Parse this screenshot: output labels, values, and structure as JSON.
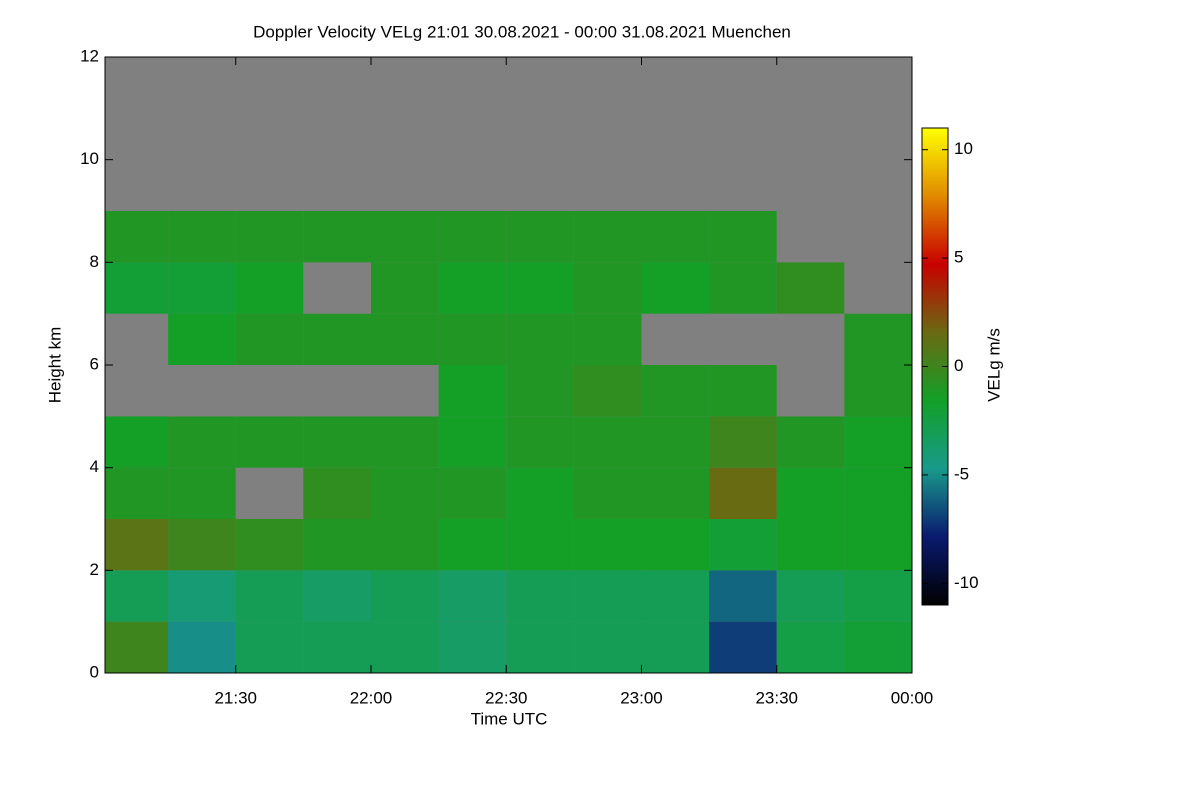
{
  "chart_data": {
    "type": "heatmap",
    "title": "Doppler Velocity VELg   21:01 30.08.2021 - 00:00 31.08.2021 Muenchen",
    "xlabel": "Time UTC",
    "ylabel": "Height km",
    "x": [
      21.125,
      21.375,
      21.625,
      21.875,
      22.125,
      22.375,
      22.625,
      22.875,
      23.125,
      23.375,
      23.625,
      23.875
    ],
    "y": [
      0.5,
      1.5,
      2.5,
      3.5,
      4.5,
      5.5,
      6.5,
      7.5,
      8.5,
      9.5,
      10.5,
      11.5
    ],
    "values": [
      [
        0,
        -5,
        -3,
        -3,
        -3,
        -3.5,
        -3,
        -3,
        -3,
        -7,
        -2.5,
        -2
      ],
      [
        -3,
        -4,
        -3,
        -3.5,
        -3,
        -3.5,
        -3,
        -3,
        -3,
        -6,
        -3,
        -2.5
      ],
      [
        1,
        0,
        -0.5,
        -1,
        -1,
        -1.5,
        -1.5,
        -1.5,
        -1.5,
        -2,
        -1.5,
        -1.5
      ],
      [
        -1,
        -1,
        null,
        -0.5,
        -1,
        -1,
        -1.5,
        -1,
        -1,
        1.5,
        -1.5,
        -1.5
      ],
      [
        -1.5,
        -1,
        -1,
        -1,
        -1,
        -1.5,
        -1,
        -1,
        -1,
        0,
        -1,
        -1.5
      ],
      [
        null,
        null,
        null,
        null,
        null,
        -1.5,
        -1,
        -0.5,
        -1,
        -1,
        null,
        -1
      ],
      [
        null,
        -1.5,
        -1,
        -1,
        -1,
        -1,
        -1,
        -1,
        null,
        null,
        null,
        -1
      ],
      [
        -2,
        -2,
        -1.5,
        null,
        -1,
        -1.5,
        -1.5,
        -1,
        -1.5,
        -1,
        -0.5,
        null
      ],
      [
        -1,
        -1,
        -1,
        -1,
        -1,
        -1,
        -1,
        -1,
        -1,
        -1,
        null,
        null
      ],
      [
        null,
        null,
        null,
        null,
        null,
        null,
        null,
        null,
        null,
        null,
        null,
        null
      ],
      [
        null,
        null,
        null,
        null,
        null,
        null,
        null,
        null,
        null,
        null,
        null,
        null
      ],
      [
        null,
        null,
        null,
        null,
        null,
        null,
        null,
        null,
        null,
        null,
        null,
        null
      ]
    ],
    "xlim": [
      21.0167,
      24
    ],
    "xticks": [
      {
        "value": 21.5,
        "label": "21:30"
      },
      {
        "value": 22,
        "label": "22:00"
      },
      {
        "value": 22.5,
        "label": "22:30"
      },
      {
        "value": 23,
        "label": "23:00"
      },
      {
        "value": 23.5,
        "label": "23:30"
      },
      {
        "value": 24,
        "label": "00:00"
      }
    ],
    "ylim": [
      0,
      12
    ],
    "yticks": [
      0,
      2,
      4,
      6,
      8,
      10,
      12
    ],
    "no_data_color": "#808080",
    "colorbar": {
      "label": "VELg m/s",
      "lim": [
        -11,
        11
      ],
      "ticks": [
        -10,
        -5,
        0,
        5,
        10
      ],
      "colors": [
        "#000000",
        "#0a1a70",
        "#189a8a",
        "#12a028",
        "#6a6a12",
        "#c80000",
        "#e08a00",
        "#ffff00"
      ]
    }
  }
}
